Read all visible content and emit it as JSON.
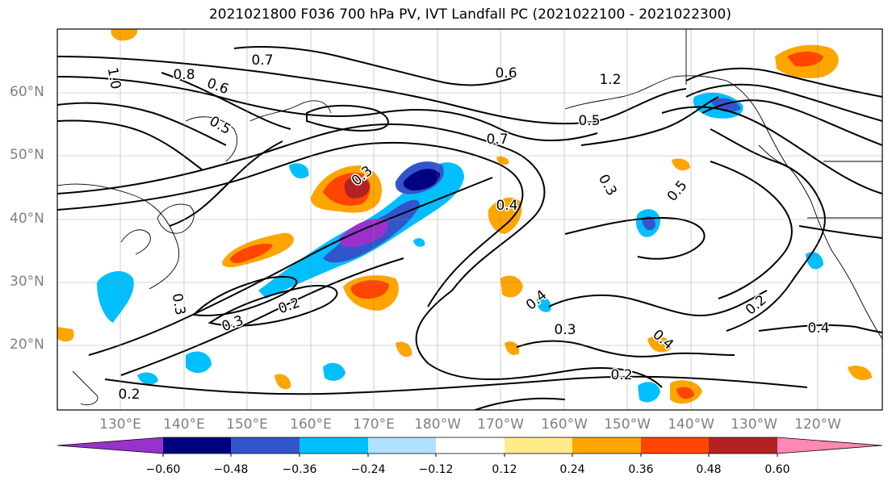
{
  "title": "2021021800 F036 700 hPa PV, IVT Landfall PC (2021022100 - 2021022300)",
  "latitude_labels": [
    "60°N",
    "50°N",
    "40°N",
    "30°N",
    "20°N"
  ],
  "longitude_labels": [
    "130°E",
    "140°E",
    "150°E",
    "160°E",
    "170°E",
    "180°W",
    "170°W",
    "160°W",
    "150°W",
    "140°W",
    "130°W",
    "120°W"
  ],
  "colorbar": {
    "tick_labels": [
      "−0.60",
      "−0.48",
      "−0.36",
      "−0.24",
      "−0.12",
      "0.12",
      "0.24",
      "0.36",
      "0.48",
      "0.60"
    ],
    "colors": [
      "#9932cc",
      "#000080",
      "#3355cc",
      "#00bfff",
      "#b0e2ff",
      "#ffffff",
      "#ffeb8a",
      "#ffa500",
      "#ff4500",
      "#b22222",
      "#ff88b4"
    ]
  },
  "contour_labels": [
    {
      "text": "0.8"
    },
    {
      "text": "0.7"
    },
    {
      "text": "0.6"
    },
    {
      "text": "0.5"
    },
    {
      "text": "0.3"
    },
    {
      "text": "0.2"
    },
    {
      "text": "0.4"
    },
    {
      "text": "1.2"
    },
    {
      "text": "1.0"
    },
    {
      "text": "0.7"
    },
    {
      "text": "0.6"
    },
    {
      "text": "0.5"
    },
    {
      "text": "0.3"
    },
    {
      "text": "0.5"
    },
    {
      "text": "0.3"
    },
    {
      "text": "0.4"
    },
    {
      "text": "0.2"
    },
    {
      "text": "0.4"
    },
    {
      "text": "0.2"
    },
    {
      "text": "0.2"
    },
    {
      "text": "0.3"
    },
    {
      "text": "0.3"
    },
    {
      "text": "0.4"
    }
  ]
}
